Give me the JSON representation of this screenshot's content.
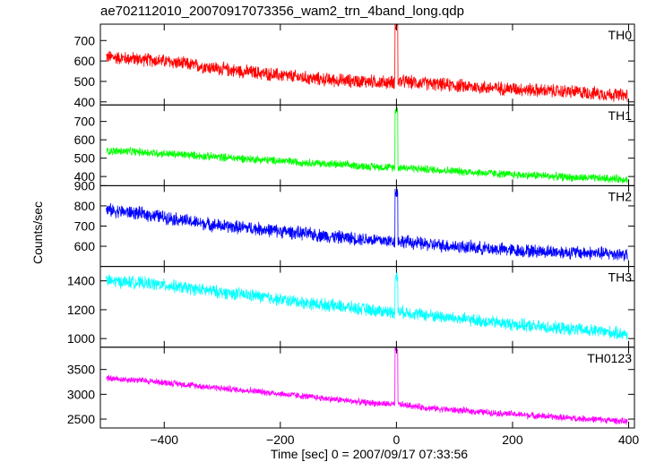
{
  "chart_data": {
    "type": "line",
    "title": "ae702112010_20070917073356_wam2_trn_4band_long.qdp",
    "xlabel": "Time [sec] 0 = 2007/09/17 07:33:56",
    "ylabel": "Counts/sec",
    "xlim": [
      -510,
      410
    ],
    "xticks": [
      -400,
      -200,
      0,
      200,
      400
    ],
    "grid": false,
    "panels": [
      {
        "name": "TH0",
        "color": "#ff0000",
        "ylim": [
          385,
          780
        ],
        "yticks": [
          400,
          500,
          600,
          700
        ],
        "x": [
          -500,
          -450,
          -400,
          -350,
          -300,
          -250,
          -200,
          -150,
          -100,
          -50,
          -10,
          0,
          10,
          50,
          100,
          150,
          200,
          250,
          300,
          350,
          400
        ],
        "values": [
          620,
          610,
          600,
          580,
          560,
          545,
          530,
          515,
          505,
          500,
          495,
          780,
          500,
          490,
          480,
          470,
          465,
          455,
          450,
          440,
          430
        ],
        "noise": 30
      },
      {
        "name": "TH1",
        "color": "#00ff00",
        "ylim": [
          350,
          790
        ],
        "yticks": [
          400,
          500,
          600,
          700
        ],
        "x": [
          -500,
          -450,
          -400,
          -350,
          -300,
          -250,
          -200,
          -150,
          -100,
          -50,
          -10,
          0,
          10,
          50,
          100,
          150,
          200,
          250,
          300,
          350,
          400
        ],
        "values": [
          540,
          535,
          525,
          515,
          505,
          495,
          485,
          475,
          465,
          455,
          450,
          760,
          450,
          440,
          430,
          420,
          410,
          405,
          395,
          390,
          385
        ],
        "noise": 20
      },
      {
        "name": "TH2",
        "color": "#0000ff",
        "ylim": [
          500,
          900
        ],
        "yticks": [
          600,
          700,
          800,
          900
        ],
        "x": [
          -500,
          -450,
          -400,
          -350,
          -300,
          -250,
          -200,
          -150,
          -100,
          -50,
          -10,
          0,
          10,
          50,
          100,
          150,
          200,
          250,
          300,
          350,
          400
        ],
        "values": [
          780,
          765,
          745,
          720,
          700,
          690,
          675,
          660,
          645,
          635,
          625,
          870,
          625,
          610,
          600,
          590,
          580,
          575,
          570,
          565,
          560
        ],
        "noise": 30
      },
      {
        "name": "TH3",
        "color": "#00ffff",
        "ylim": [
          940,
          1500
        ],
        "yticks": [
          1000,
          1200,
          1400
        ],
        "x": [
          -500,
          -450,
          -400,
          -350,
          -300,
          -250,
          -200,
          -150,
          -100,
          -50,
          -10,
          0,
          10,
          50,
          100,
          150,
          200,
          250,
          300,
          350,
          400
        ],
        "values": [
          1400,
          1390,
          1370,
          1345,
          1320,
          1300,
          1270,
          1245,
          1225,
          1200,
          1185,
          1430,
          1185,
          1165,
          1140,
          1120,
          1100,
          1080,
          1065,
          1050,
          1030
        ],
        "noise": 40
      },
      {
        "name": "TH0123",
        "color": "#ff00ff",
        "ylim": [
          2320,
          3950
        ],
        "yticks": [
          2500,
          3000,
          3500
        ],
        "x": [
          -500,
          -450,
          -400,
          -350,
          -300,
          -250,
          -200,
          -150,
          -100,
          -50,
          -10,
          0,
          10,
          50,
          100,
          150,
          200,
          250,
          300,
          350,
          400
        ],
        "values": [
          3320,
          3290,
          3240,
          3180,
          3120,
          3070,
          3010,
          2950,
          2890,
          2830,
          2800,
          3900,
          2790,
          2730,
          2680,
          2640,
          2600,
          2560,
          2520,
          2490,
          2450
        ],
        "noise": 60
      }
    ]
  }
}
